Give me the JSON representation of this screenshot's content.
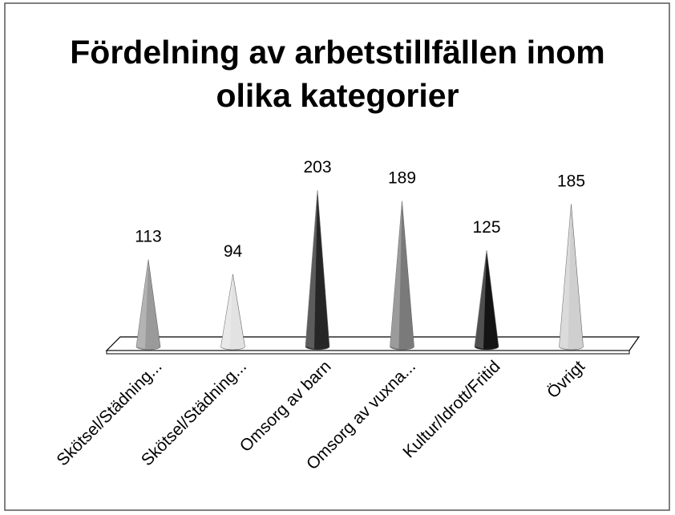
{
  "chart_data": {
    "type": "cone",
    "title": "Fördelning av arbetstillfällen inom olika kategorier",
    "categories": [
      "Skötsel/Städning...",
      "Skötsel/Städning...",
      "Omsorg av barn",
      "Omsorg av vuxna...",
      "Kultur/Idrott/Fritid",
      "Övrigt"
    ],
    "values": [
      113,
      94,
      203,
      189,
      125,
      185
    ],
    "colors": [
      "#9a9a9a",
      "#e2e2e2",
      "#262626",
      "#7a7a7a",
      "#141414",
      "#cfcfcf"
    ]
  }
}
